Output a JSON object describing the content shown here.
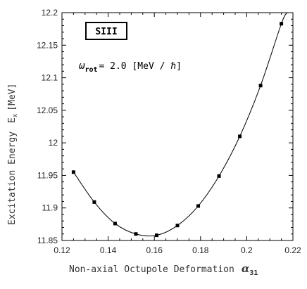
{
  "chart_data": {
    "type": "line",
    "title": "",
    "xlabel": {
      "text": "Non-axial Octupole Deformation",
      "symbol": "α",
      "subscript": "31"
    },
    "ylabel": {
      "text": "Excitation Energy",
      "quantity": "E",
      "quantity_sub": "x",
      "unit": "[MeV]"
    },
    "legend_box": "SIII",
    "annotation": {
      "symbol": "ω",
      "subscript": "rot",
      "text": "= 2.0 [MeV / ℏ]"
    },
    "xlim": [
      0.12,
      0.22
    ],
    "ylim": [
      11.85,
      12.2
    ],
    "xticks": [
      0.12,
      0.14,
      0.16,
      0.18,
      0.2,
      0.22
    ],
    "xtick_labels": [
      "0.12",
      "0.14",
      "0.16",
      "0.18",
      "0.2",
      "0.22"
    ],
    "yticks": [
      11.85,
      11.9,
      11.95,
      12.0,
      12.05,
      12.1,
      12.15,
      12.2
    ],
    "ytick_labels": [
      "11.85",
      "11.9",
      "11.95",
      "12",
      "12.05",
      "12.1",
      "12.15",
      "12.2"
    ],
    "grid": false,
    "series": [
      {
        "marker": "square",
        "x": [
          0.125,
          0.134,
          0.143,
          0.152,
          0.161,
          0.17,
          0.179,
          0.188,
          0.197,
          0.206,
          0.215
        ],
        "y": [
          11.955,
          11.909,
          11.876,
          11.86,
          11.858,
          11.873,
          11.903,
          11.949,
          12.01,
          12.088,
          12.183
        ]
      }
    ],
    "curve_end": {
      "x": 0.2175,
      "y": 12.2
    }
  }
}
